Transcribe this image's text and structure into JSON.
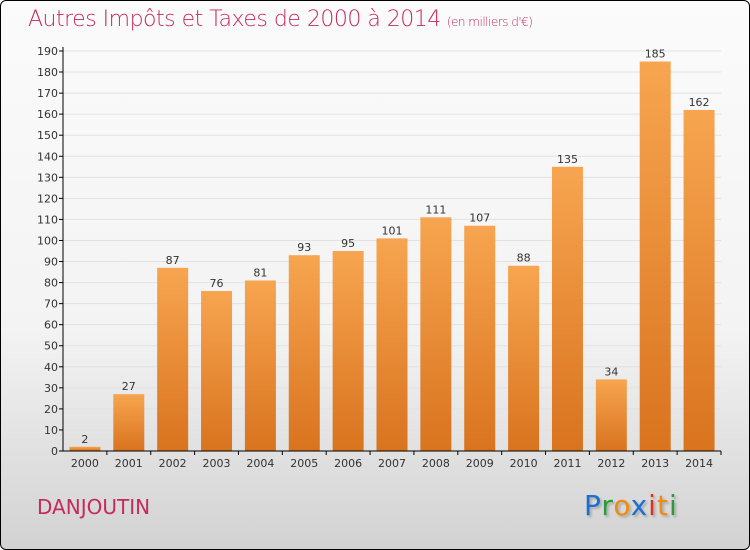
{
  "chart_data": {
    "type": "bar",
    "title": "Autres Impôts et Taxes de 2000 à 2014",
    "subtitle": "(en milliers d'€)",
    "categories": [
      "2000",
      "2001",
      "2002",
      "2003",
      "2004",
      "2005",
      "2006",
      "2007",
      "2008",
      "2009",
      "2010",
      "2011",
      "2012",
      "2013",
      "2014"
    ],
    "values": [
      2,
      27,
      87,
      76,
      81,
      93,
      95,
      101,
      111,
      107,
      88,
      135,
      34,
      185,
      162
    ],
    "ylim": [
      0,
      190
    ],
    "yticks": [
      0,
      10,
      20,
      30,
      40,
      50,
      60,
      70,
      80,
      90,
      100,
      110,
      120,
      130,
      140,
      150,
      160,
      170,
      180,
      190
    ],
    "grid": true,
    "xlabel": "",
    "ylabel": ""
  },
  "location": "DANJOUTIN",
  "logo": {
    "letters": [
      "P",
      "r",
      "o",
      "x",
      "i",
      "t",
      "i"
    ],
    "colors": [
      "#1a6fd0",
      "#2a9a3a",
      "#f08a10",
      "#1a6fd0",
      "#e03020",
      "#f08a10",
      "#2a9a3a"
    ]
  },
  "colors": {
    "bar_top": "#f7a550",
    "bar_bottom": "#d9731e",
    "title": "#c42a5c"
  }
}
